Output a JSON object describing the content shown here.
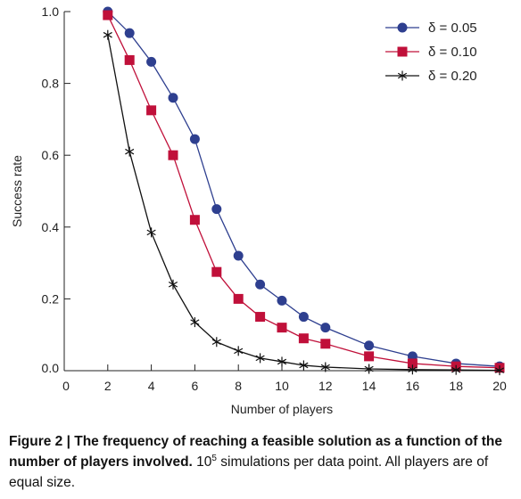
{
  "chart_data": {
    "type": "line",
    "xlabel": "Number of players",
    "ylabel": "Success rate",
    "xlim": [
      0,
      20
    ],
    "ylim": [
      0,
      1.0
    ],
    "x_ticks": [
      "0",
      "2",
      "4",
      "6",
      "8",
      "10",
      "12",
      "14",
      "16",
      "18",
      "20"
    ],
    "y_ticks": [
      "0.0",
      "0.2",
      "0.4",
      "0.6",
      "0.8",
      "1.0"
    ],
    "grid": false,
    "legend_position": "top-right",
    "series": [
      {
        "name": "δ = 0.05",
        "marker": "circle",
        "color": "#2e3f8f",
        "x": [
          2,
          3,
          4,
          5,
          6,
          7,
          8,
          9,
          10,
          11,
          12,
          14,
          16,
          18,
          20
        ],
        "y": [
          1.0,
          0.94,
          0.86,
          0.76,
          0.645,
          0.45,
          0.32,
          0.24,
          0.195,
          0.15,
          0.12,
          0.07,
          0.04,
          0.02,
          0.012
        ]
      },
      {
        "name": "δ = 0.10",
        "marker": "square",
        "color": "#c0103a",
        "x": [
          2,
          3,
          4,
          5,
          6,
          7,
          8,
          9,
          10,
          11,
          12,
          14,
          16,
          18,
          20
        ],
        "y": [
          0.99,
          0.865,
          0.725,
          0.6,
          0.42,
          0.275,
          0.2,
          0.15,
          0.12,
          0.09,
          0.075,
          0.04,
          0.02,
          0.012,
          0.008
        ]
      },
      {
        "name": "δ = 0.20",
        "marker": "star",
        "color": "#111111",
        "x": [
          2,
          3,
          4,
          5,
          6,
          7,
          8,
          9,
          10,
          11,
          12,
          14,
          16,
          18,
          20
        ],
        "y": [
          0.935,
          0.61,
          0.385,
          0.24,
          0.135,
          0.08,
          0.055,
          0.035,
          0.025,
          0.015,
          0.01,
          0.005,
          0.003,
          0.002,
          0.001
        ]
      }
    ]
  },
  "caption": {
    "head": "Figure 2 | The frequency of reaching a feasible solution as a function of the number of players involved.",
    "body_pre": " 10",
    "body_sup": "5",
    "body_post": " simulations per data point. All players are of equal size."
  }
}
